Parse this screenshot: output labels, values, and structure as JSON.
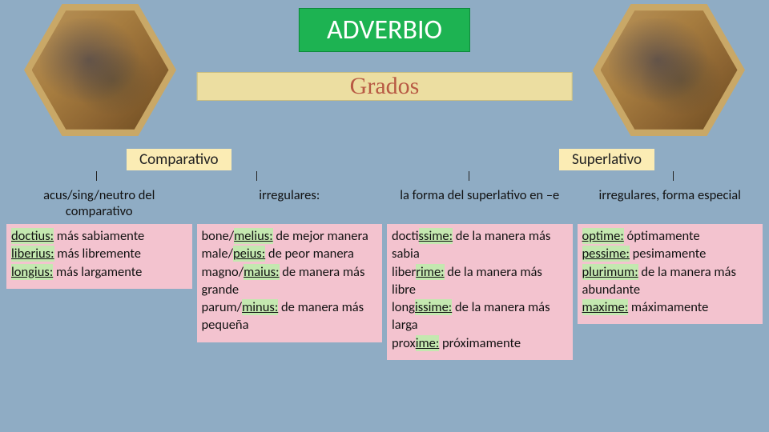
{
  "title": "ADVERBIO",
  "subtitle": "Grados",
  "categories": {
    "left": "Comparativo",
    "right": "Superlativo"
  },
  "columns": [
    {
      "header": "acus/sing/neutro del comparativo",
      "body": "<span class=\"hl\">doctius:</span> más sabiamente<br><span class=\"hl\">liberius:</span> más libremente<br><span class=\"hl\">longius:</span> más largamente"
    },
    {
      "header": "irregulares:",
      "body": "bone/<span class=\"hl\">melius:</span> de mejor manera<br>male/<span class=\"hl\">peius:</span> de peor manera<br>magno/<span class=\"hl\">maius:</span> de manera más grande<br>parum/<span class=\"hl\">minus:</span> de manera más pequeña"
    },
    {
      "header": "la forma del superlativo en –e",
      "body": "doct<span class=\"hl\">issime:</span> de la manera más sabia<br>liber<span class=\"hl\">rime:</span> de la manera más libre<br>long<span class=\"hl\">issime:</span> de la manera más larga<br>prox<span class=\"hl\">ime:</span> próximamente"
    },
    {
      "header": "irregulares, forma especial",
      "body": "<span class=\"hl\">optime:</span> óptimamente<br><span class=\"hl\">pessime:</span> pesimamente<br><span class=\"hl\">plurimum:</span> de la manera más abundante<br><span class=\"hl\">maxime:</span> máximamente"
    }
  ],
  "colors": {
    "background": "#8facc4",
    "title_bg": "#1db352",
    "subtitle_bg": "#ecdea1",
    "subtitle_text": "#b85a44",
    "cat_bg": "#fbecb4",
    "body_bg": "#f3c3cf",
    "highlight_bg": "#c4e8b0"
  }
}
